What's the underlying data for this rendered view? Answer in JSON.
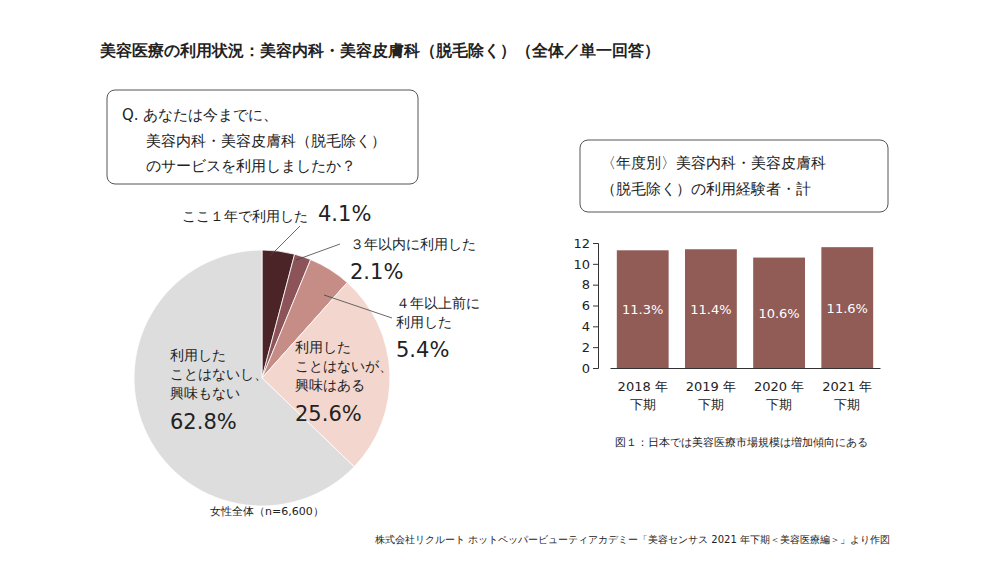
{
  "title": "美容医療の利用状況：美容内科・美容皮膚科（脱毛除く）（全体／単一回答）",
  "source": "株式会社リクルート ホットペッパービューティアカデミー「美容センサス 2021 年下期＜美容医療編＞」より作図",
  "chart_data": [
    {
      "type": "pie",
      "title": [
        "Q. あなたは今までに、",
        "美容内科・美容皮膚科（脱毛除く）",
        "のサービスを利用しましたか？"
      ],
      "subtitle": "女性全体（n=6,600）",
      "categories": [
        "ここ１年で利用した",
        "３年以内に利用した",
        "４年以上前に\n利用した",
        "利用した\nことはないが、\n興味はある",
        "利用した\nことはないし、\n興味もない"
      ],
      "values": [
        4.1,
        2.1,
        5.4,
        25.6,
        62.8
      ],
      "value_labels": [
        "4.1%",
        "2.1%",
        "5.4%",
        "25.6%",
        "62.8%"
      ],
      "colors": [
        "#4b2428",
        "#8c5458",
        "#c68c86",
        "#f3d7cf",
        "#dddddd"
      ],
      "data_labels": true
    },
    {
      "type": "bar",
      "title": [
        "〈年度別〉美容内科・美容皮膚科",
        "（脱毛除く）の利用経験者・計"
      ],
      "categories": [
        "2018 年\n下期",
        "2019 年\n下期",
        "2020 年\n下期",
        "2021 年\n下期"
      ],
      "values": [
        11.3,
        11.4,
        10.6,
        11.6
      ],
      "value_labels": [
        "11.3%",
        "11.4%",
        "10.6%",
        "11.6%"
      ],
      "color": "#915b56",
      "ylim": [
        0,
        12
      ],
      "yticks": [
        0,
        2,
        4,
        6,
        8,
        10,
        12
      ],
      "data_labels": true,
      "annotations": [
        "図１：日本では美容医療市場規模は増加傾向にある"
      ]
    }
  ]
}
